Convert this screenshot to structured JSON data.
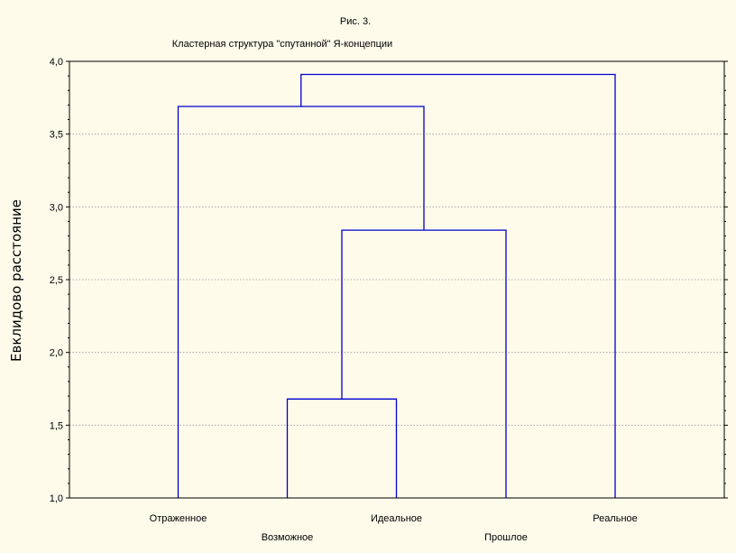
{
  "chart_data": {
    "type": "dendrogram",
    "figure_label": "Рис. 3.",
    "title": "Кластерная структура \"спутанной\" Я-концепции",
    "ylabel": "Евклидово расстояние",
    "ylim": [
      1.0,
      4.0
    ],
    "y_ticks": [
      {
        "value": 1.0,
        "label": "1,0"
      },
      {
        "value": 1.5,
        "label": "1,5"
      },
      {
        "value": 2.0,
        "label": "2,0"
      },
      {
        "value": 2.5,
        "label": "2,5"
      },
      {
        "value": 3.0,
        "label": "3,0"
      },
      {
        "value": 3.5,
        "label": "3,5"
      },
      {
        "value": 4.0,
        "label": "4,0"
      }
    ],
    "grid": true,
    "leaves": [
      "Отраженное",
      "Возможное",
      "Идеальное",
      "Прошлое",
      "Реальное"
    ],
    "links": [
      {
        "left": "Возможное",
        "right": "Идеальное",
        "height": 1.68
      },
      {
        "left": "Возможное+Идеальное",
        "right": "Прошлое",
        "height": 2.84
      },
      {
        "left": "Отраженное",
        "right": "Возможное+Идеальное+Прошлое",
        "height": 3.69
      },
      {
        "left": "Отраженное+Возможное+Идеальное+Прошлое",
        "right": "Реальное",
        "height": 3.91
      }
    ],
    "line_color": "#0000cc"
  }
}
